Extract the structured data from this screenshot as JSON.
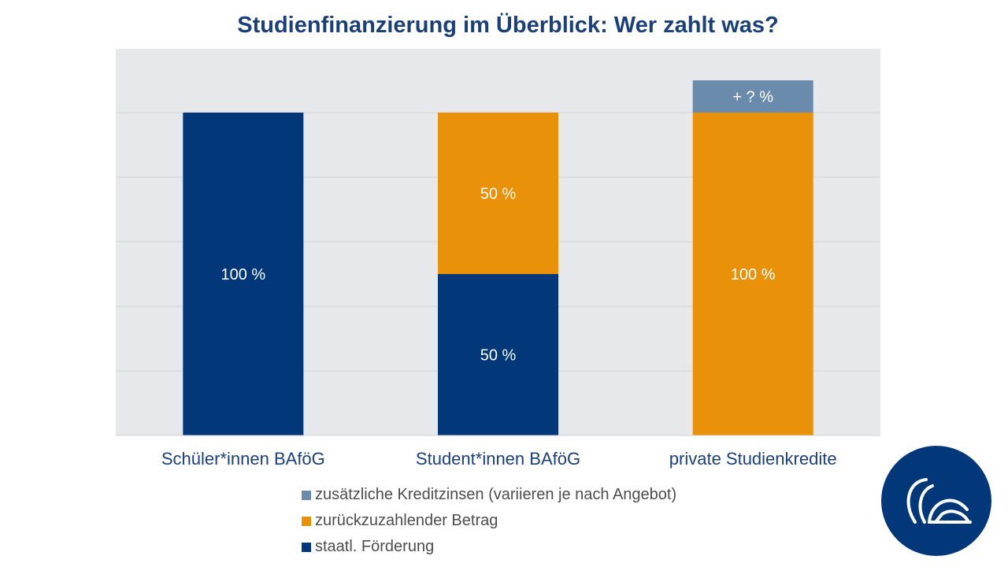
{
  "chart_data": {
    "type": "bar",
    "stacked": true,
    "title": "Studienfinanzierung im Überblick: Wer zahlt was?",
    "categories": [
      "Schüler*innen BAföG",
      "Student*innen BAföG",
      "private Studienkredite"
    ],
    "ylim": [
      0,
      110
    ],
    "grid": true,
    "legend_position": "bottom",
    "series": [
      {
        "name": "staatl. Förderung",
        "color": "#02387a",
        "values": [
          100,
          50,
          0
        ],
        "labels": [
          "100 %",
          "50 %",
          ""
        ]
      },
      {
        "name": "zurückzuzahlender Betrag",
        "color": "#ea910a",
        "values": [
          0,
          50,
          100
        ],
        "labels": [
          "",
          "50 %",
          "100 %"
        ]
      },
      {
        "name": "zusätzliche Kreditzinsen (variieren je nach Angebot)",
        "color": "#6a8bab",
        "values": [
          0,
          0,
          10
        ],
        "labels": [
          "",
          "",
          "+ ? %"
        ]
      }
    ]
  },
  "legend_order": [
    2,
    1,
    0
  ],
  "logo": {
    "name": "logo-icon",
    "color": "#02387a"
  },
  "colors": {
    "plot_background": "#e6e8eb",
    "gridline": "#d2d6da",
    "title": "#1b3f7a"
  }
}
